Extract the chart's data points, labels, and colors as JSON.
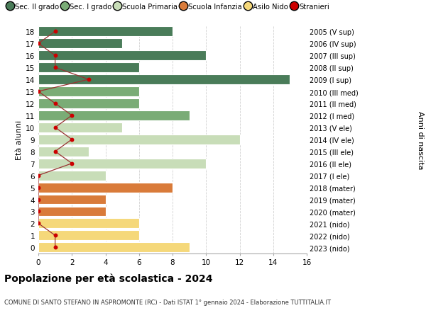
{
  "ages": [
    18,
    17,
    16,
    15,
    14,
    13,
    12,
    11,
    10,
    9,
    8,
    7,
    6,
    5,
    4,
    3,
    2,
    1,
    0
  ],
  "bar_values": [
    8,
    5,
    10,
    6,
    15,
    6,
    6,
    9,
    5,
    12,
    3,
    10,
    4,
    8,
    4,
    4,
    6,
    6,
    9
  ],
  "right_labels": [
    "2005 (V sup)",
    "2006 (IV sup)",
    "2007 (III sup)",
    "2008 (II sup)",
    "2009 (I sup)",
    "2010 (III med)",
    "2011 (II med)",
    "2012 (I med)",
    "2013 (V ele)",
    "2014 (IV ele)",
    "2015 (III ele)",
    "2016 (II ele)",
    "2017 (I ele)",
    "2018 (mater)",
    "2019 (mater)",
    "2020 (mater)",
    "2021 (nido)",
    "2022 (nido)",
    "2023 (nido)"
  ],
  "bar_colors": [
    "#4a7c59",
    "#4a7c59",
    "#4a7c59",
    "#4a7c59",
    "#4a7c59",
    "#7aac76",
    "#7aac76",
    "#7aac76",
    "#c8ddb8",
    "#c8ddb8",
    "#c8ddb8",
    "#c8ddb8",
    "#c8ddb8",
    "#d97b3a",
    "#d97b3a",
    "#d97b3a",
    "#f5d87a",
    "#f5d87a",
    "#f5d87a"
  ],
  "stranieri_values": [
    1,
    0,
    1,
    1,
    3,
    0,
    1,
    2,
    1,
    2,
    1,
    2,
    0,
    0,
    0,
    0,
    0,
    1,
    1
  ],
  "legend_labels": [
    "Sec. II grado",
    "Sec. I grado",
    "Scuola Primaria",
    "Scuola Infanzia",
    "Asilo Nido",
    "Stranieri"
  ],
  "legend_colors": [
    "#4a7c59",
    "#7aac76",
    "#c8ddb8",
    "#d97b3a",
    "#f5d87a",
    "#cc0000"
  ],
  "title": "Popolazione per età scolastica - 2024",
  "subtitle": "COMUNE DI SANTO STEFANO IN ASPROMONTE (RC) - Dati ISTAT 1° gennaio 2024 - Elaborazione TUTTITALIA.IT",
  "ylabel_left": "Età alunni",
  "ylabel_right": "Anni di nascita",
  "xlim": [
    0,
    16
  ],
  "xticks": [
    0,
    2,
    4,
    6,
    8,
    10,
    12,
    14,
    16
  ],
  "background_color": "#ffffff",
  "grid_color": "#cccccc",
  "stranieri_line_color": "#993333",
  "stranieri_dot_color": "#cc0000"
}
